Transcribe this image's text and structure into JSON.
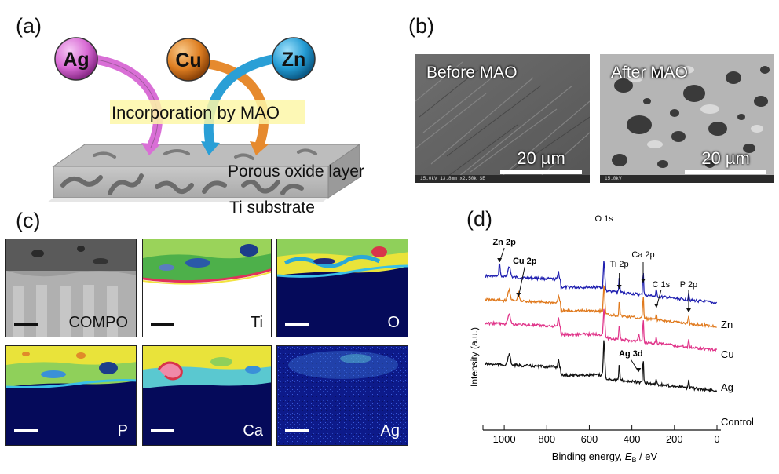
{
  "panels": {
    "a": "(a)",
    "b": "(b)",
    "c": "(c)",
    "d": "(d)"
  },
  "schematic": {
    "ion_ag": "Ag",
    "ion_cu": "Cu",
    "ion_zn": "Zn",
    "incorporation_label": "Incorporation by MAO",
    "oxide_label": "Porous oxide layer",
    "substrate_label": "Ti substrate",
    "colors": {
      "ag": "#d96fd6",
      "cu": "#e68a2e",
      "zn": "#2a9fd6"
    }
  },
  "sem": {
    "before_title": "Before MAO",
    "after_title": "After MAO",
    "scale_text": "20 µm",
    "before_info": "15.0kV 13.8mm x2.50k SE",
    "after_info": "15.0kV"
  },
  "maps": [
    {
      "label": "COMPO"
    },
    {
      "label": "Ti"
    },
    {
      "label": "O"
    },
    {
      "label": "P"
    },
    {
      "label": "Ca"
    },
    {
      "label": "Ag"
    }
  ],
  "chart_data": {
    "type": "line",
    "title": "",
    "xlabel_prefix": "Binding energy, ",
    "xlabel_var": "E",
    "xlabel_sub": "B",
    "xlabel_suffix": " / eV",
    "ylabel": "Intensity (a.u.)",
    "xlim": [
      1100,
      0
    ],
    "x_ticks": [
      1000,
      800,
      600,
      400,
      200,
      0
    ],
    "series": [
      {
        "name": "Zn",
        "color": "#1f1fb0"
      },
      {
        "name": "Cu",
        "color": "#e07a1e"
      },
      {
        "name": "Ag",
        "color": "#e0358a"
      },
      {
        "name": "Control",
        "color": "#111111"
      }
    ],
    "peaks": [
      {
        "label": "O 1s",
        "x": 531
      },
      {
        "label": "Ti 2p",
        "x": 459
      },
      {
        "label": "Ca 2p",
        "x": 347
      },
      {
        "label": "C 1s",
        "x": 285
      },
      {
        "label": "P 2p",
        "x": 133
      },
      {
        "label": "Zn 2p",
        "x": 1022
      },
      {
        "label": "Cu 2p",
        "x": 933
      },
      {
        "label": "Ag 3d",
        "x": 368
      }
    ]
  }
}
